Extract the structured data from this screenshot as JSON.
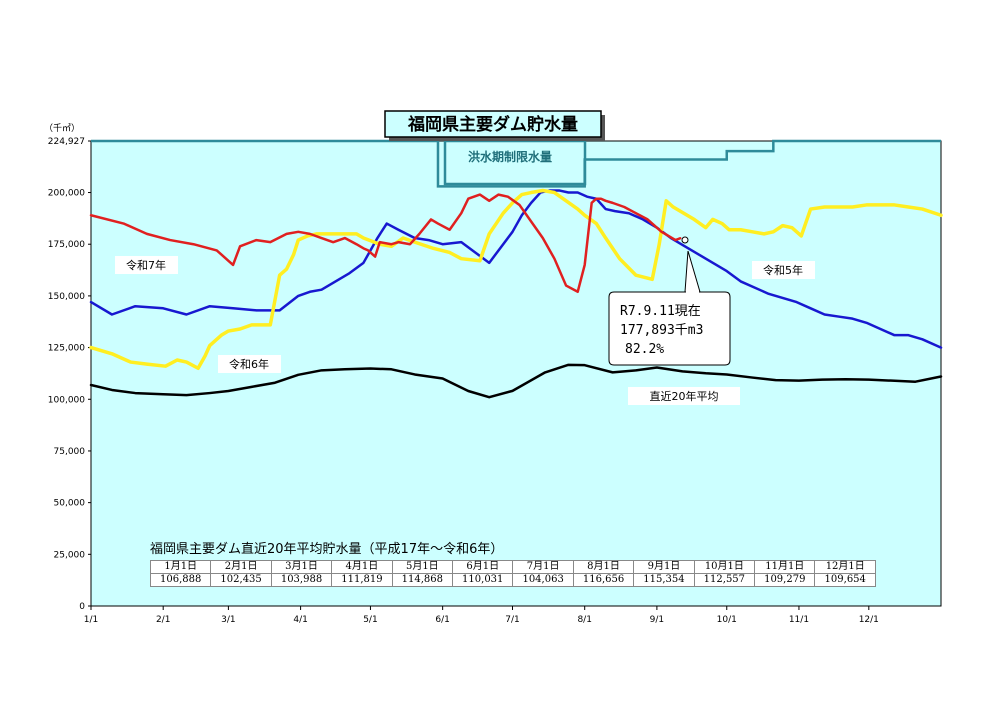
{
  "chart_data": {
    "type": "line",
    "title": "福岡県主要ダム貯水量",
    "ylabel": "（千㎥）",
    "ylim": [
      0,
      224927
    ],
    "yticks": [
      "0",
      "25,000",
      "50,000",
      "75,000",
      "100,000",
      "125,000",
      "150,000",
      "175,000",
      "200,000",
      "224,927"
    ],
    "ytick_values": [
      0,
      25000,
      50000,
      75000,
      100000,
      125000,
      150000,
      175000,
      200000,
      224927
    ],
    "xticks": [
      "1/1",
      "2/1",
      "3/1",
      "4/1",
      "5/1",
      "6/1",
      "7/1",
      "8/1",
      "9/1",
      "10/1",
      "11/1",
      "12/1"
    ],
    "xlim": [
      1,
      366
    ],
    "grid": false,
    "flood_label": "洪水期制限水量",
    "flood_limit": [
      [
        1,
        224927
      ],
      [
        150,
        224927
      ],
      [
        150,
        203000
      ],
      [
        213,
        203000
      ],
      [
        213,
        216000
      ],
      [
        274,
        216000
      ],
      [
        274,
        220000
      ],
      [
        294,
        220000
      ],
      [
        294,
        224927
      ],
      [
        366,
        224927
      ]
    ],
    "series": [
      {
        "name": "令和7年",
        "color": "#e02020",
        "x": [
          1,
          15,
          25,
          35,
          45,
          55,
          60,
          62,
          65,
          72,
          78,
          85,
          90,
          95,
          100,
          105,
          110,
          115,
          118,
          120,
          123,
          125,
          130,
          133,
          138,
          142,
          147,
          150,
          155,
          160,
          163,
          168,
          172,
          176,
          180,
          185,
          190,
          195,
          200,
          205,
          210,
          213,
          216,
          218,
          220,
          222,
          225,
          230,
          235,
          240,
          246,
          252,
          254
        ],
        "y": [
          189000,
          185000,
          180000,
          177000,
          175000,
          172000,
          167000,
          165000,
          174000,
          177000,
          176000,
          180000,
          181000,
          180000,
          178000,
          176000,
          178000,
          175000,
          173000,
          172000,
          169000,
          176000,
          175000,
          176000,
          175000,
          180000,
          187000,
          185000,
          182000,
          190000,
          197000,
          199000,
          196000,
          199000,
          198000,
          194000,
          186000,
          178000,
          168000,
          155000,
          152000,
          165000,
          195000,
          197000,
          197000,
          196000,
          195000,
          193000,
          190000,
          187000,
          181000,
          177000,
          177893
        ]
      },
      {
        "name": "令和6年",
        "color": "#ffee22",
        "x": [
          1,
          10,
          18,
          25,
          33,
          38,
          42,
          47,
          50,
          52,
          55,
          57,
          60,
          65,
          70,
          78,
          82,
          85,
          88,
          90,
          94,
          98,
          102,
          105,
          110,
          115,
          118,
          125,
          130,
          135,
          140,
          148,
          155,
          160,
          168,
          172,
          175,
          178,
          182,
          186,
          190,
          195,
          200,
          205,
          210,
          213,
          218,
          222,
          228,
          235,
          242,
          245,
          248,
          251,
          254,
          260,
          265,
          268,
          272,
          275,
          280,
          285,
          290,
          294,
          298,
          302,
          306,
          310,
          316,
          322,
          328,
          334,
          340,
          346,
          352,
          358,
          366
        ],
        "y": [
          125000,
          122000,
          118000,
          117000,
          116000,
          119000,
          118000,
          115000,
          121000,
          126000,
          129000,
          131000,
          133000,
          134000,
          136000,
          136000,
          160000,
          163000,
          170000,
          177000,
          179000,
          180000,
          180000,
          180000,
          180000,
          180000,
          178000,
          175000,
          174000,
          178000,
          176000,
          173000,
          171000,
          168000,
          167000,
          180000,
          185000,
          190000,
          195000,
          199000,
          200000,
          201000,
          200000,
          196000,
          192000,
          189000,
          185000,
          178000,
          168000,
          160000,
          158000,
          175000,
          196000,
          193000,
          191000,
          187000,
          183000,
          187000,
          185000,
          182000,
          182000,
          181000,
          180000,
          181000,
          184000,
          183000,
          179000,
          192000,
          193000,
          193000,
          193000,
          194000,
          194000,
          194000,
          193000,
          192000,
          189000
        ]
      },
      {
        "name": "令和5年",
        "color": "#1818d0",
        "x": [
          1,
          10,
          20,
          32,
          42,
          52,
          62,
          72,
          82,
          90,
          95,
          100,
          106,
          112,
          118,
          124,
          128,
          133,
          140,
          146,
          152,
          160,
          166,
          172,
          178,
          182,
          186,
          190,
          194,
          198,
          202,
          206,
          210,
          214,
          218,
          222,
          226,
          232,
          238,
          244,
          250,
          256,
          262,
          268,
          274,
          280,
          286,
          292,
          298,
          304,
          310,
          316,
          322,
          328,
          334,
          340,
          346,
          352,
          358,
          366
        ],
        "y": [
          147000,
          141000,
          145000,
          144000,
          141000,
          145000,
          144000,
          143000,
          143000,
          150000,
          152000,
          153000,
          157000,
          161000,
          166000,
          178000,
          185000,
          182000,
          178000,
          177000,
          175000,
          176000,
          171000,
          166000,
          175000,
          181000,
          189000,
          195000,
          200000,
          201000,
          201000,
          200000,
          200000,
          198000,
          197000,
          192000,
          191000,
          190000,
          187000,
          183000,
          178000,
          174000,
          170000,
          166000,
          162000,
          157000,
          154000,
          151000,
          149000,
          147000,
          144000,
          141000,
          140000,
          139000,
          137000,
          134000,
          131000,
          131000,
          129000,
          125000
        ]
      },
      {
        "name": "直近20年平均",
        "color": "#000000",
        "x": [
          1,
          10,
          20,
          32,
          42,
          52,
          60,
          70,
          80,
          90,
          100,
          110,
          121,
          130,
          140,
          152,
          163,
          172,
          182,
          196,
          206,
          213,
          225,
          235,
          244,
          255,
          265,
          274,
          285,
          295,
          305,
          315,
          325,
          335,
          345,
          355,
          366
        ],
        "y": [
          106888,
          104500,
          103000,
          102435,
          102000,
          103000,
          103988,
          106000,
          108000,
          111819,
          114000,
          114500,
          114868,
          114500,
          112000,
          110031,
          104000,
          101000,
          104063,
          113000,
          116656,
          116500,
          113000,
          114000,
          115354,
          113500,
          112557,
          112000,
          110500,
          109279,
          109000,
          109500,
          109654,
          109500,
          109000,
          108500,
          111000
        ]
      }
    ],
    "labels": {
      "r7": "令和7年",
      "r6": "令和6年",
      "r5": "令和5年",
      "avg": "直近20年平均"
    },
    "callout": {
      "line1": "R7.9.11現在",
      "line2": "177,893千m3",
      "line3": "82.2%"
    }
  },
  "table": {
    "title": "福岡県主要ダム直近20年平均貯水量（平成17年～令和6年）",
    "headers": [
      "1月1日",
      "2月1日",
      "3月1日",
      "4月1日",
      "5月1日",
      "6月1日",
      "7月1日",
      "8月1日",
      "9月1日",
      "10月1日",
      "11月1日",
      "12月1日"
    ],
    "values": [
      "106,888",
      "102,435",
      "103,988",
      "111,819",
      "114,868",
      "110,031",
      "104,063",
      "116,656",
      "115,354",
      "112,557",
      "109,279",
      "109,654"
    ]
  }
}
